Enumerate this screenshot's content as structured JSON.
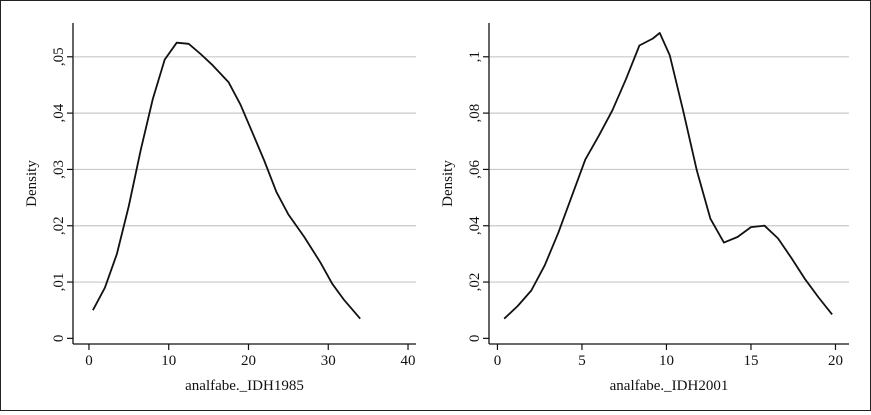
{
  "chart_data": [
    {
      "type": "line",
      "title": "",
      "xlabel": "analfabe._IDH1985",
      "ylabel": "Density",
      "xlim": [
        -2,
        41
      ],
      "ylim": [
        -0.001,
        0.056
      ],
      "xticks": [
        0,
        10,
        20,
        30,
        40
      ],
      "xtick_labels": [
        "0",
        "10",
        "20",
        "30",
        "40"
      ],
      "yticks": [
        0,
        0.01,
        0.02,
        0.03,
        0.04,
        0.05
      ],
      "ytick_labels": [
        "0",
        ",01",
        ",02",
        ",03",
        ",04",
        ",05"
      ],
      "grid": true,
      "x": [
        0.5,
        2,
        3.5,
        5,
        6.5,
        8,
        9.5,
        11,
        12.5,
        14,
        15.5,
        17.5,
        19,
        20.5,
        22,
        23.5,
        25,
        27,
        29,
        30.5,
        32,
        34
      ],
      "y": [
        0.005,
        0.009,
        0.015,
        0.0235,
        0.0335,
        0.0425,
        0.0495,
        0.0525,
        0.0523,
        0.0505,
        0.0485,
        0.0455,
        0.0415,
        0.0365,
        0.0315,
        0.026,
        0.022,
        0.018,
        0.0135,
        0.0097,
        0.0068,
        0.0035
      ]
    },
    {
      "type": "line",
      "title": "",
      "xlabel": "analfabe._IDH2001",
      "ylabel": "Density",
      "xlim": [
        -0.5,
        20.8
      ],
      "ylim": [
        -0.002,
        0.112
      ],
      "xticks": [
        0,
        5,
        10,
        15,
        20
      ],
      "xtick_labels": [
        "0",
        "5",
        "10",
        "15",
        "20"
      ],
      "yticks": [
        0,
        0.02,
        0.04,
        0.06,
        0.08,
        0.1
      ],
      "ytick_labels": [
        "0",
        ",02",
        ",04",
        ",06",
        ",08",
        ",1"
      ],
      "grid": true,
      "x": [
        0.4,
        1.2,
        2,
        2.8,
        3.6,
        4.4,
        5.2,
        6,
        6.8,
        7.6,
        8.4,
        9.2,
        9.6,
        10.2,
        11,
        11.8,
        12.6,
        13.4,
        14.2,
        15,
        15.8,
        16.6,
        17.4,
        18.2,
        19,
        19.8
      ],
      "y": [
        0.007,
        0.0115,
        0.017,
        0.026,
        0.0375,
        0.0505,
        0.0635,
        0.072,
        0.081,
        0.092,
        0.104,
        0.1065,
        0.1085,
        0.1005,
        0.0805,
        0.0595,
        0.0425,
        0.034,
        0.036,
        0.0395,
        0.04,
        0.0355,
        0.0285,
        0.021,
        0.0145,
        0.0085
      ]
    }
  ]
}
